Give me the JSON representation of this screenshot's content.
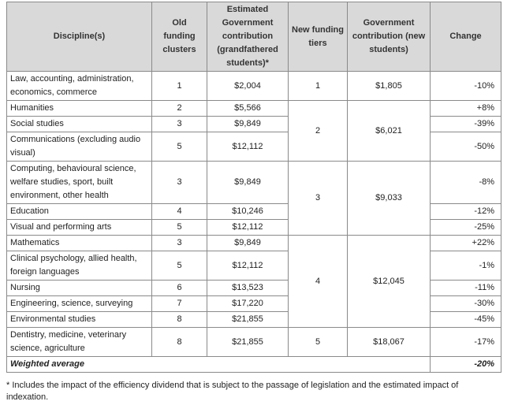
{
  "table": {
    "headers": [
      "Discipline(s)",
      "Old funding clusters",
      "Estimated Government contribution (grandfathered students)*",
      "New funding tiers",
      "Government contribution (new students)",
      "Change"
    ],
    "rows": [
      [
        "Law, accounting, administration, economics, commerce",
        "1",
        "$2,004",
        "1",
        "$1,805",
        "-10%"
      ],
      [
        "Humanities",
        "2",
        "$5,566",
        "2",
        "$6,021",
        "+8%"
      ],
      [
        "Social studies",
        "3",
        "$9,849",
        null,
        null,
        "-39%"
      ],
      [
        "Communications (excluding audio visual)",
        "5",
        "$12,112",
        null,
        null,
        "-50%"
      ],
      [
        "Computing, behavioural science, welfare studies, sport, built environment, other health",
        "3",
        "$9,849",
        "3",
        "$9,033",
        "-8%"
      ],
      [
        "Education",
        "4",
        "$10,246",
        null,
        null,
        "-12%"
      ],
      [
        "Visual and performing arts",
        "5",
        "$12,112",
        null,
        null,
        "-25%"
      ],
      [
        "Mathematics",
        "3",
        "$9,849",
        "4",
        "$12,045",
        "+22%"
      ],
      [
        "Clinical psychology, allied health, foreign languages",
        "5",
        "$12,112",
        null,
        null,
        "-1%"
      ],
      [
        "Nursing",
        "6",
        "$13,523",
        null,
        null,
        "-11%"
      ],
      [
        "Engineering, science, surveying",
        "7",
        "$17,220",
        null,
        null,
        "-30%"
      ],
      [
        "Environmental studies",
        "8",
        "$21,855",
        null,
        null,
        "-45%"
      ],
      [
        "Dentistry, medicine, veterinary science, agriculture",
        "8",
        "$21,855",
        "5",
        "$18,067",
        "-17%"
      ]
    ],
    "total": {
      "label": "Weighted average",
      "change": "-20%"
    }
  },
  "note": "* Includes the impact of the efficiency dividend that is subject to the passage of legislation and the estimated impact of indexation."
}
